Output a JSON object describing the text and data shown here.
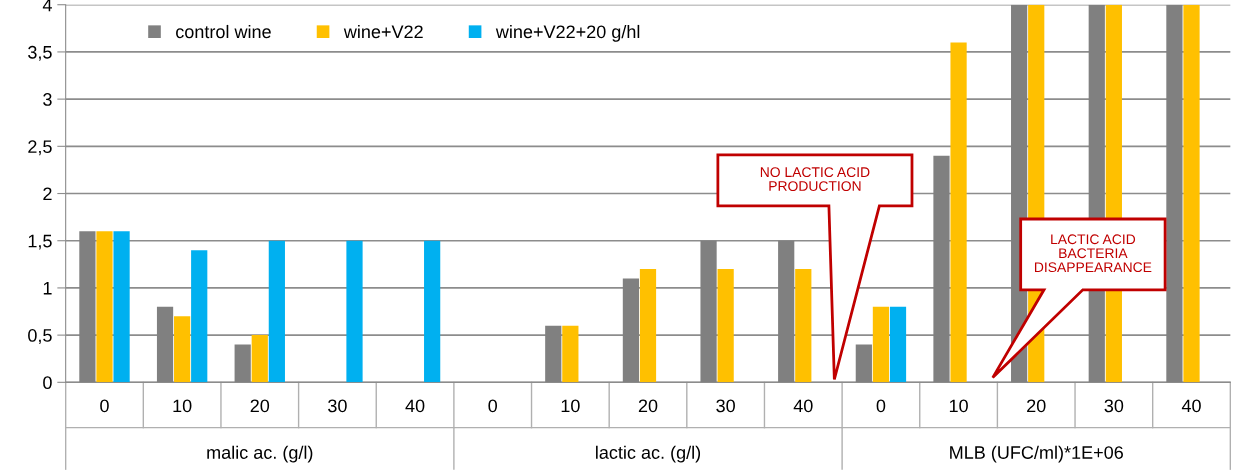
{
  "chart_data": {
    "type": "bar",
    "categories": [
      "0",
      "10",
      "20",
      "30",
      "40",
      "0",
      "10",
      "20",
      "30",
      "40",
      "0",
      "10",
      "20",
      "30",
      "40"
    ],
    "series": [
      {
        "name": "control wine",
        "color": "#808080",
        "values": [
          1.6,
          0.8,
          0.4,
          0,
          0,
          0,
          0.6,
          1.1,
          1.5,
          1.5,
          0.4,
          2.4,
          4,
          4,
          4
        ]
      },
      {
        "name": "wine+V22",
        "color": "#ffc000",
        "values": [
          1.6,
          0.7,
          0.5,
          0,
          0,
          0,
          0.6,
          1.2,
          1.2,
          1.2,
          0.8,
          3.6,
          4,
          4,
          4
        ]
      },
      {
        "name": "wine+V22+20 g/hl",
        "color": "#00b0f0",
        "values": [
          1.6,
          1.4,
          1.5,
          1.5,
          1.5,
          null,
          null,
          null,
          null,
          null,
          0.8,
          null,
          null,
          null,
          null
        ]
      }
    ],
    "ylim": [
      0,
      4
    ],
    "yticks": [
      0,
      {
        "value": 0.5,
        "label": "0,5"
      },
      1,
      {
        "value": 1.5,
        "label": "1,5"
      },
      2,
      {
        "value": 2.5,
        "label": "2,5"
      },
      3,
      {
        "value": 3.5,
        "label": "3,5"
      },
      4
    ],
    "grid": "y",
    "legend": "top left",
    "annotations": [
      "malic ac. (g/l)",
      "lactic ac. (g/l)",
      "MLB (UFC/ml)*1E+06",
      "NO LACTIC ACID\nPRODUCTION",
      "LACTIC ACID\nBACTERIA\nDISAPPEARANCE"
    ]
  }
}
